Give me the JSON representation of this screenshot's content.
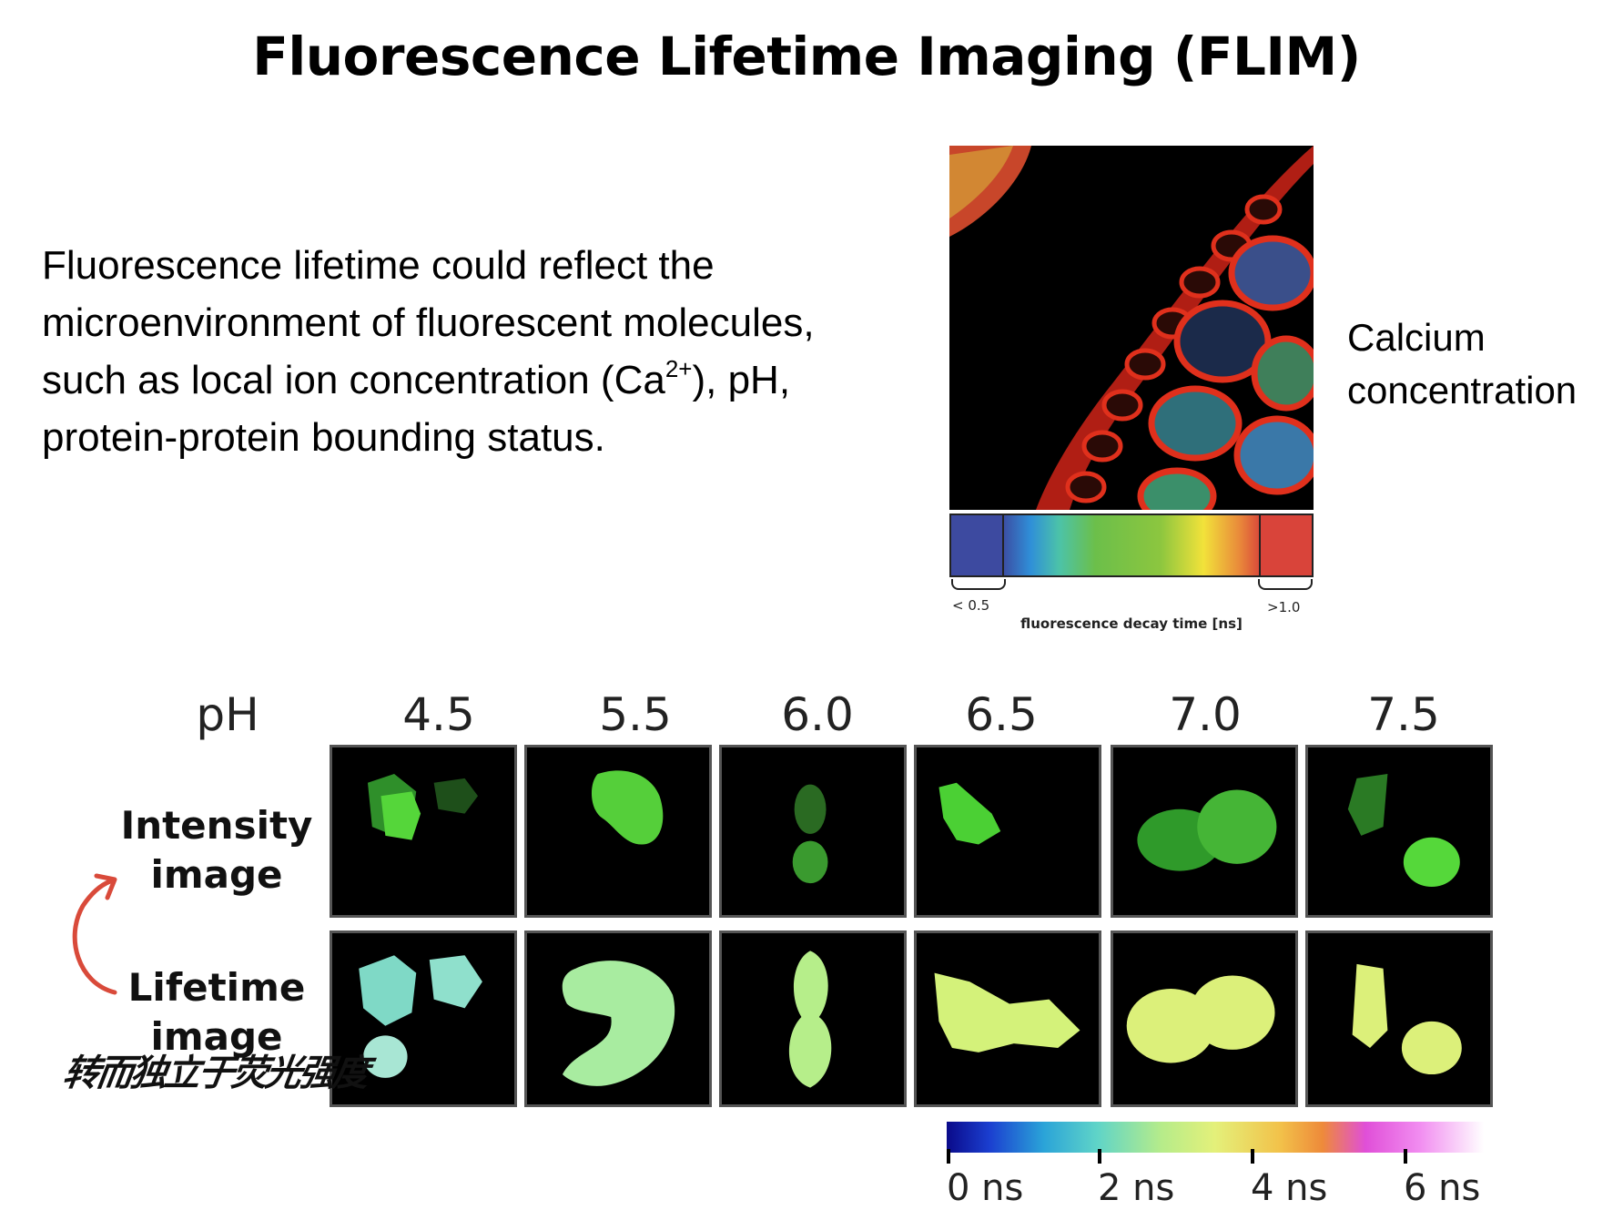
{
  "title": "Fluorescence Lifetime Imaging (FLIM)",
  "description": {
    "line1": "Fluorescence lifetime could reflect the",
    "line2": "microenvironment of fluorescent molecules,",
    "line3_before": "such as local ion concentration (Ca",
    "line3_sup": "2+",
    "line3_after": "), pH,",
    "line4": "protein-protein bounding status."
  },
  "calcium_figure": {
    "label_line1": "Calcium",
    "label_line2": "concentration",
    "colorbar_left_label": "< 0.5",
    "colorbar_right_label": ">1.0",
    "colorbar_axis_label": "fluorescence decay time [ns]"
  },
  "ph_figure": {
    "ph_label": "pH",
    "ph_values": [
      "4.5",
      "5.5",
      "6.0",
      "6.5",
      "7.0",
      "7.5"
    ],
    "row1_line1": "Intensity",
    "row1_line2": "image",
    "row2_line1": "Lifetime",
    "row2_line2": "image",
    "colorbar_ticks": [
      "0 ns",
      "2 ns",
      "4 ns",
      "6 ns"
    ]
  },
  "annotation": {
    "handwritten_note": "转而独立于荧光强度"
  },
  "colors": {
    "intensity_green": "#3fbf2f",
    "lifetime_cyan": "#7fe0c8",
    "lifetime_yellowgreen": "#c8f07a",
    "arrow_red": "#d94a3a"
  }
}
